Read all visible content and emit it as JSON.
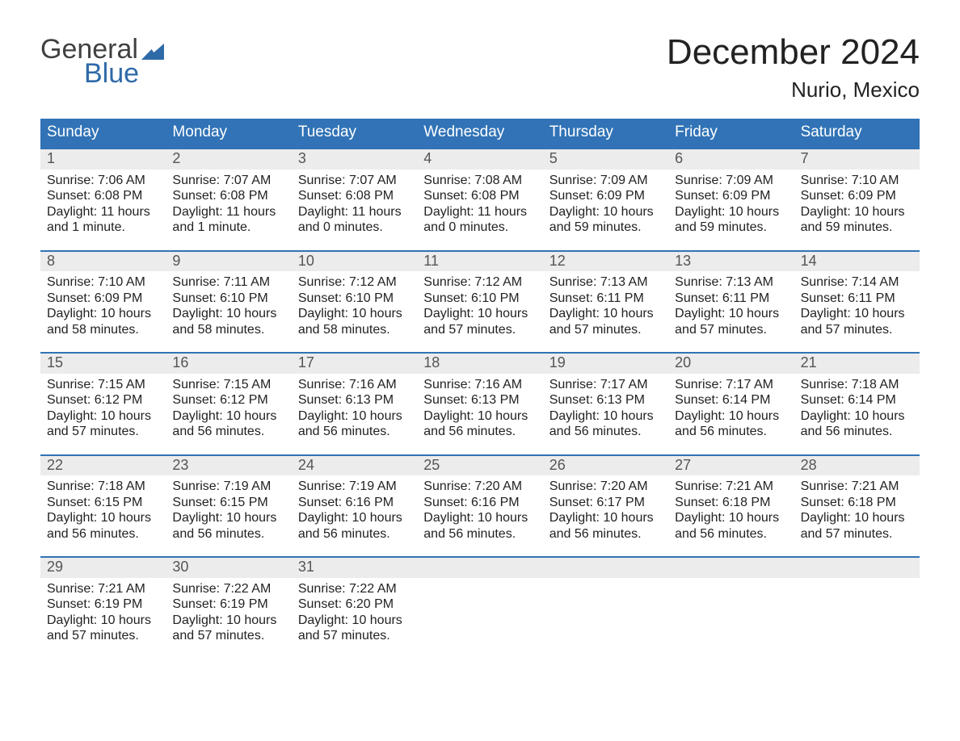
{
  "logo": {
    "text1": "General",
    "text2": "Blue"
  },
  "title": "December 2024",
  "location": "Nurio, Mexico",
  "colors": {
    "header_bg": "#3173b6",
    "header_text": "#ffffff",
    "daynum_bg": "#ececec",
    "daynum_text": "#555555",
    "week_border": "#3173b6",
    "body_text": "#222222",
    "logo_blue": "#2f6aa8",
    "logo_gray": "#404040",
    "page_bg": "#ffffff"
  },
  "weekdays": [
    "Sunday",
    "Monday",
    "Tuesday",
    "Wednesday",
    "Thursday",
    "Friday",
    "Saturday"
  ],
  "labels": {
    "sunrise": "Sunrise: ",
    "sunset": "Sunset: ",
    "daylight": "Daylight: "
  },
  "weeks": [
    [
      {
        "n": "1",
        "sunrise": "7:06 AM",
        "sunset": "6:08 PM",
        "daylight": "11 hours and 1 minute."
      },
      {
        "n": "2",
        "sunrise": "7:07 AM",
        "sunset": "6:08 PM",
        "daylight": "11 hours and 1 minute."
      },
      {
        "n": "3",
        "sunrise": "7:07 AM",
        "sunset": "6:08 PM",
        "daylight": "11 hours and 0 minutes."
      },
      {
        "n": "4",
        "sunrise": "7:08 AM",
        "sunset": "6:08 PM",
        "daylight": "11 hours and 0 minutes."
      },
      {
        "n": "5",
        "sunrise": "7:09 AM",
        "sunset": "6:09 PM",
        "daylight": "10 hours and 59 minutes."
      },
      {
        "n": "6",
        "sunrise": "7:09 AM",
        "sunset": "6:09 PM",
        "daylight": "10 hours and 59 minutes."
      },
      {
        "n": "7",
        "sunrise": "7:10 AM",
        "sunset": "6:09 PM",
        "daylight": "10 hours and 59 minutes."
      }
    ],
    [
      {
        "n": "8",
        "sunrise": "7:10 AM",
        "sunset": "6:09 PM",
        "daylight": "10 hours and 58 minutes."
      },
      {
        "n": "9",
        "sunrise": "7:11 AM",
        "sunset": "6:10 PM",
        "daylight": "10 hours and 58 minutes."
      },
      {
        "n": "10",
        "sunrise": "7:12 AM",
        "sunset": "6:10 PM",
        "daylight": "10 hours and 58 minutes."
      },
      {
        "n": "11",
        "sunrise": "7:12 AM",
        "sunset": "6:10 PM",
        "daylight": "10 hours and 57 minutes."
      },
      {
        "n": "12",
        "sunrise": "7:13 AM",
        "sunset": "6:11 PM",
        "daylight": "10 hours and 57 minutes."
      },
      {
        "n": "13",
        "sunrise": "7:13 AM",
        "sunset": "6:11 PM",
        "daylight": "10 hours and 57 minutes."
      },
      {
        "n": "14",
        "sunrise": "7:14 AM",
        "sunset": "6:11 PM",
        "daylight": "10 hours and 57 minutes."
      }
    ],
    [
      {
        "n": "15",
        "sunrise": "7:15 AM",
        "sunset": "6:12 PM",
        "daylight": "10 hours and 57 minutes."
      },
      {
        "n": "16",
        "sunrise": "7:15 AM",
        "sunset": "6:12 PM",
        "daylight": "10 hours and 56 minutes."
      },
      {
        "n": "17",
        "sunrise": "7:16 AM",
        "sunset": "6:13 PM",
        "daylight": "10 hours and 56 minutes."
      },
      {
        "n": "18",
        "sunrise": "7:16 AM",
        "sunset": "6:13 PM",
        "daylight": "10 hours and 56 minutes."
      },
      {
        "n": "19",
        "sunrise": "7:17 AM",
        "sunset": "6:13 PM",
        "daylight": "10 hours and 56 minutes."
      },
      {
        "n": "20",
        "sunrise": "7:17 AM",
        "sunset": "6:14 PM",
        "daylight": "10 hours and 56 minutes."
      },
      {
        "n": "21",
        "sunrise": "7:18 AM",
        "sunset": "6:14 PM",
        "daylight": "10 hours and 56 minutes."
      }
    ],
    [
      {
        "n": "22",
        "sunrise": "7:18 AM",
        "sunset": "6:15 PM",
        "daylight": "10 hours and 56 minutes."
      },
      {
        "n": "23",
        "sunrise": "7:19 AM",
        "sunset": "6:15 PM",
        "daylight": "10 hours and 56 minutes."
      },
      {
        "n": "24",
        "sunrise": "7:19 AM",
        "sunset": "6:16 PM",
        "daylight": "10 hours and 56 minutes."
      },
      {
        "n": "25",
        "sunrise": "7:20 AM",
        "sunset": "6:16 PM",
        "daylight": "10 hours and 56 minutes."
      },
      {
        "n": "26",
        "sunrise": "7:20 AM",
        "sunset": "6:17 PM",
        "daylight": "10 hours and 56 minutes."
      },
      {
        "n": "27",
        "sunrise": "7:21 AM",
        "sunset": "6:18 PM",
        "daylight": "10 hours and 56 minutes."
      },
      {
        "n": "28",
        "sunrise": "7:21 AM",
        "sunset": "6:18 PM",
        "daylight": "10 hours and 57 minutes."
      }
    ],
    [
      {
        "n": "29",
        "sunrise": "7:21 AM",
        "sunset": "6:19 PM",
        "daylight": "10 hours and 57 minutes."
      },
      {
        "n": "30",
        "sunrise": "7:22 AM",
        "sunset": "6:19 PM",
        "daylight": "10 hours and 57 minutes."
      },
      {
        "n": "31",
        "sunrise": "7:22 AM",
        "sunset": "6:20 PM",
        "daylight": "10 hours and 57 minutes."
      },
      null,
      null,
      null,
      null
    ]
  ]
}
